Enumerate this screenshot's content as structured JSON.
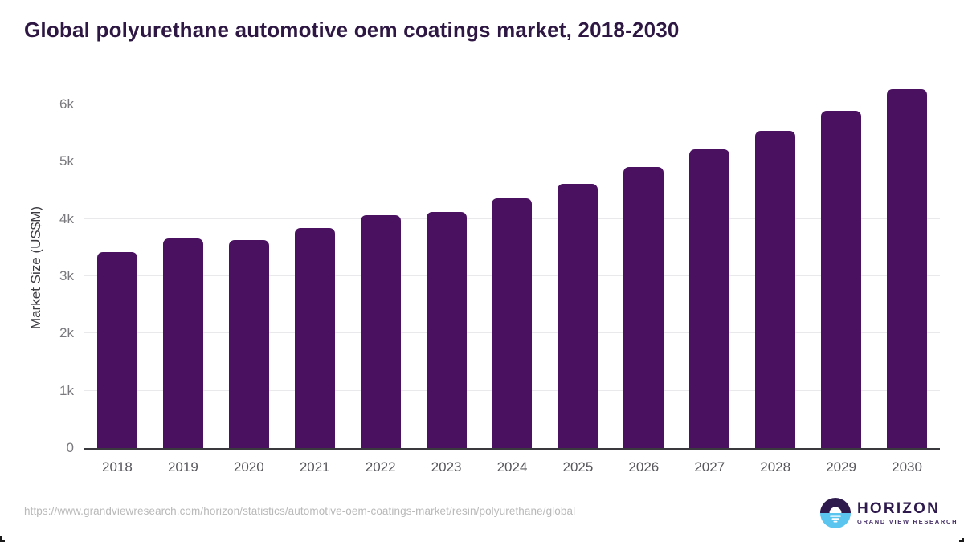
{
  "header": {
    "title": "Global polyurethane automotive oem coatings market, 2018-2030"
  },
  "chart_data": {
    "type": "bar",
    "title": "Global polyurethane automotive oem coatings market, 2018-2030",
    "categories": [
      "2018",
      "2019",
      "2020",
      "2021",
      "2022",
      "2023",
      "2024",
      "2025",
      "2026",
      "2027",
      "2028",
      "2029",
      "2030"
    ],
    "values": [
      3420,
      3655,
      3630,
      3840,
      4070,
      4120,
      4360,
      4615,
      4905,
      5210,
      5535,
      5885,
      6270
    ],
    "series_name": "Market Size",
    "xlabel": "",
    "ylabel": "Market Size (US$M)",
    "ylim": [
      0,
      6310
    ],
    "ytick_values": [
      0,
      1000,
      2000,
      3000,
      4000,
      5000,
      6000
    ],
    "ytick_labels": [
      "0",
      "1k",
      "2k",
      "3k",
      "4k",
      "5k",
      "6k"
    ],
    "grid": "horizontal",
    "legend": "none",
    "bar_color": "#4a1160"
  },
  "footer": {
    "source_url": "https://www.grandviewresearch.com/horizon/statistics/automotive-oem-coatings-market/resin/polyurethane/global",
    "logo": {
      "brand": "HORIZON",
      "tagline": "GRAND VIEW RESEARCH",
      "mark_purple": "#2e1a4d",
      "mark_blue": "#5bc5ef"
    }
  }
}
